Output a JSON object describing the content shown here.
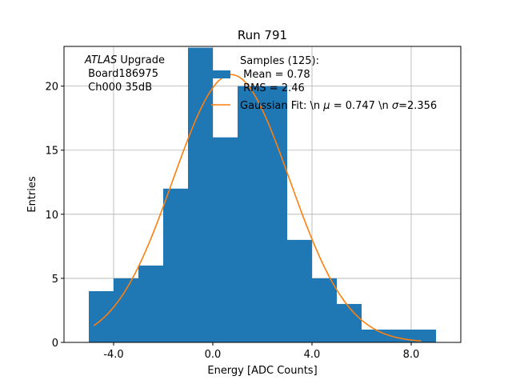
{
  "chart_data": {
    "type": "bar",
    "title": "Run 791",
    "xlabel": "Energy [ADC Counts]",
    "ylabel": "Entries",
    "xlim": [
      -6,
      10
    ],
    "ylim": [
      0,
      23.1
    ],
    "xticks": [
      -4,
      0,
      4,
      8
    ],
    "xtick_labels": [
      "-4.0",
      "0.0",
      "4.0",
      "8.0"
    ],
    "yticks": [
      0,
      5,
      10,
      15,
      20
    ],
    "ytick_labels": [
      "0",
      "5",
      "10",
      "15",
      "20"
    ],
    "grid": true,
    "bin_edges": [
      -5,
      -4,
      -3,
      -2,
      -1,
      0,
      1,
      2,
      3,
      4,
      5,
      6,
      7,
      8,
      9
    ],
    "values": [
      4,
      5,
      6,
      12,
      23,
      16,
      20,
      20,
      8,
      5,
      3,
      1,
      1,
      1
    ],
    "colors": {
      "histogram": "#1f77b4",
      "fit": "#ff7f0e",
      "grid": "#b0b0b0"
    },
    "fit": {
      "mu": 0.747,
      "sigma": 2.356,
      "amplitude": 20.9,
      "x_range": [
        -4.8,
        8.4
      ]
    },
    "annotation": {
      "italic_part": "ATLAS",
      "line1_rest": " Upgrade",
      "line2": " Board186975",
      "line3": " Ch000 35dB"
    },
    "legend": {
      "placement": "top-right",
      "hist_lines": [
        "Samples (125):",
        " Mean = 0.78",
        " RMS = 2.46"
      ],
      "fit_prefix": "Gaussian Fit: \\n ",
      "fit_mu_symbol": "μ",
      "fit_mid": " = 0.747 \\n ",
      "fit_sigma_symbol": "σ",
      "fit_suffix": "=2.356"
    }
  }
}
